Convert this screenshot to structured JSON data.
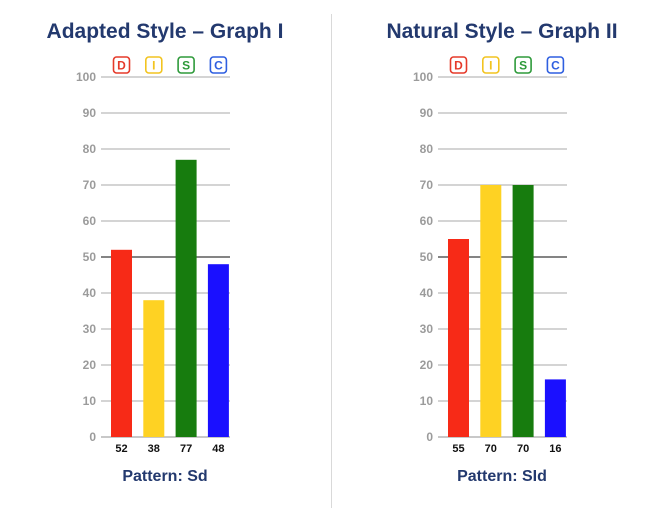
{
  "colors": {
    "title": "#23396e",
    "grid": "#a8a8a8",
    "grid_mid": "#3a3a3a",
    "tick": "#9b9b9b",
    "divider": "#d9d9d9"
  },
  "chart_data": [
    {
      "type": "bar",
      "title": "Adapted Style – Graph I",
      "categories": [
        "D",
        "I",
        "S",
        "C"
      ],
      "category_colors": [
        "#e53a2a",
        "#f2c420",
        "#2e9a3a",
        "#2f5fe0"
      ],
      "bar_colors": [
        "#f72a17",
        "#fed223",
        "#177c0e",
        "#1a10ff"
      ],
      "values": [
        52,
        38,
        77,
        48
      ],
      "value_labels": [
        "52",
        "38",
        "77",
        "48"
      ],
      "ylim": [
        0,
        100
      ],
      "yticks": [
        0,
        10,
        20,
        30,
        40,
        50,
        60,
        70,
        80,
        90,
        100
      ],
      "grid": true,
      "pattern_label": "Pattern: Sd"
    },
    {
      "type": "bar",
      "title": "Natural Style – Graph II",
      "categories": [
        "D",
        "I",
        "S",
        "C"
      ],
      "category_colors": [
        "#e53a2a",
        "#f2c420",
        "#2e9a3a",
        "#2f5fe0"
      ],
      "bar_colors": [
        "#f72a17",
        "#fed223",
        "#177c0e",
        "#1a10ff"
      ],
      "values": [
        55,
        70,
        70,
        16
      ],
      "value_labels": [
        "55",
        "70",
        "70",
        "16"
      ],
      "ylim": [
        0,
        100
      ],
      "yticks": [
        0,
        10,
        20,
        30,
        40,
        50,
        60,
        70,
        80,
        90,
        100
      ],
      "grid": true,
      "pattern_label": "Pattern: SId"
    }
  ]
}
